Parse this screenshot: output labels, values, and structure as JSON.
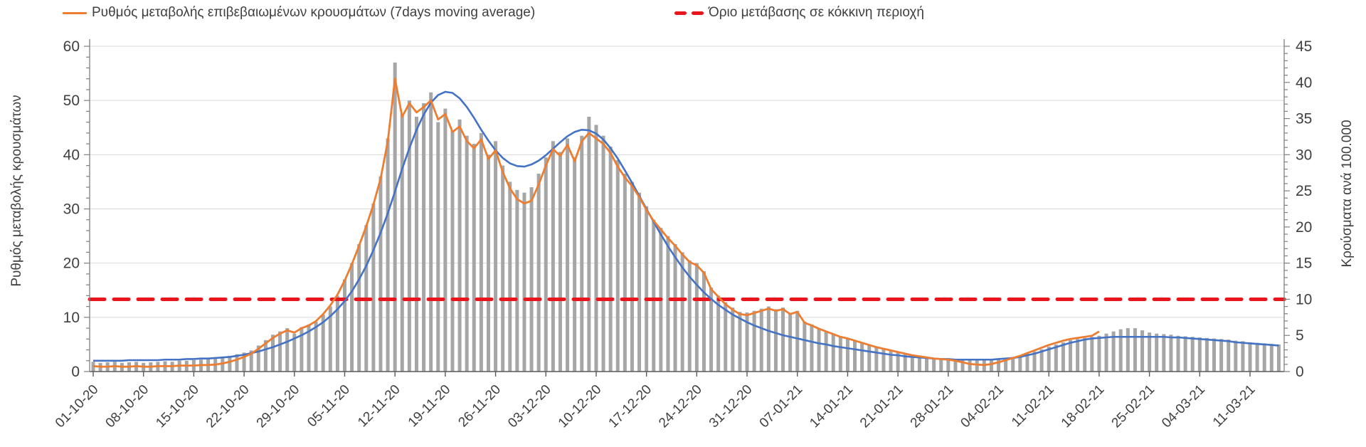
{
  "chart_data": {
    "type": "bar+line combo (daily epidemic curve)",
    "title": "",
    "legend": [
      {
        "label": "Ρυθμός μεταβολής επιβεβαιωμένων κρουσμάτων (7days moving average)",
        "style": "solid-line",
        "color": "#ED7D31"
      },
      {
        "label": "Όριο μετάβασης σε κόκκινη περιοχή",
        "style": "dashed-line",
        "color": "#E8151C"
      }
    ],
    "y_left": {
      "label": "Ρυθμός μεταβολής κρουσμάτων",
      "min": 0,
      "max": 60,
      "tick_step": 10,
      "ticks": [
        0,
        10,
        20,
        30,
        40,
        50,
        60
      ]
    },
    "y_right": {
      "label": "Κρούσματα ανά 100.000",
      "min": 0,
      "max": 45,
      "tick_step": 5,
      "ticks": [
        0,
        5,
        10,
        15,
        20,
        25,
        30,
        35,
        40,
        45
      ]
    },
    "x_tick_labels": [
      "01-10-20",
      "08-10-20",
      "15-10-20",
      "22-10-20",
      "29-10-20",
      "05-11-20",
      "12-11-20",
      "19-11-20",
      "26-11-20",
      "03-12-20",
      "10-12-20",
      "17-12-20",
      "24-12-20",
      "31-12-20",
      "07-01-21",
      "14-01-21",
      "21-01-21",
      "28-01-21",
      "04-02-21",
      "11-02-21",
      "18-02-21",
      "25-02-21",
      "04-03-21",
      "11-03-21"
    ],
    "x_tick_interval_days": 7,
    "grid": "horizontal-light-gray",
    "colors": {
      "bars": "#A6A6A6",
      "ma7": "#ED7D31",
      "trend": "#4472C4",
      "threshold": "#E8151C",
      "gridline": "#D9D9D9",
      "axis": "#595959",
      "text": "#3F3F3F"
    },
    "threshold": {
      "value": 10,
      "axis": "right",
      "left_axis_equivalent": 13.33
    },
    "series": [
      {
        "name": "daily-bars",
        "type": "bar",
        "axis": "left",
        "values": [
          1.8,
          1.6,
          1.7,
          1.8,
          1.6,
          1.7,
          1.8,
          1.6,
          1.7,
          1.8,
          1.9,
          1.8,
          2.0,
          2.0,
          2.1,
          2.2,
          2.3,
          2.5,
          2.7,
          2.9,
          3.2,
          3.5,
          3.9,
          4.8,
          5.8,
          6.8,
          7.4,
          8.0,
          7.0,
          8.2,
          8.7,
          9.2,
          10.5,
          12.0,
          14.0,
          17.0,
          20.0,
          23.5,
          27.0,
          31.0,
          36.0,
          43.0,
          57.0,
          47.5,
          50.0,
          47.0,
          49.5,
          51.5,
          46.0,
          48.5,
          44.5,
          46.5,
          43.5,
          42.0,
          44.0,
          40.0,
          42.5,
          38.0,
          35.0,
          33.5,
          33.0,
          34.0,
          36.5,
          39.5,
          42.5,
          40.5,
          43.0,
          39.5,
          43.5,
          47.0,
          45.5,
          43.5,
          41.5,
          39.0,
          36.5,
          35.0,
          33.0,
          30.5,
          28.0,
          26.5,
          25.0,
          23.5,
          22.0,
          20.5,
          20.0,
          18.5,
          15.5,
          14.0,
          12.8,
          11.8,
          11.0,
          10.9,
          11.2,
          11.6,
          12.0,
          11.5,
          11.8,
          10.8,
          11.2,
          9.2,
          8.7,
          8.0,
          7.5,
          7.0,
          6.5,
          6.1,
          5.7,
          5.3,
          4.9,
          4.5,
          4.2,
          3.9,
          3.6,
          3.3,
          3.0,
          2.8,
          2.6,
          2.5,
          2.4,
          2.4,
          2.3,
          2.3,
          2.3,
          2.3,
          2.2,
          2.3,
          2.4,
          2.5,
          2.7,
          3.0,
          3.3,
          3.7,
          4.1,
          4.6,
          5.0,
          5.4,
          5.8,
          6.0,
          6.2,
          6.4,
          6.6,
          7.0,
          7.4,
          7.8,
          8.0,
          8.0,
          7.6,
          7.2,
          7.0,
          6.9,
          6.8,
          6.6,
          6.5,
          6.4,
          6.3,
          6.2,
          6.1,
          6.0,
          5.9,
          5.7,
          5.6,
          5.4,
          5.3,
          5.2,
          5.1,
          5.0
        ]
      },
      {
        "name": "Ρυθμός μεταβολής επιβεβαιωμένων κρουσμάτων (7days moving average)",
        "type": "line",
        "axis": "left",
        "values": [
          1.0,
          0.9,
          0.9,
          1.0,
          0.9,
          0.9,
          1.0,
          0.9,
          0.9,
          1.0,
          1.0,
          1.0,
          1.1,
          1.1,
          1.1,
          1.2,
          1.2,
          1.3,
          1.5,
          1.8,
          2.2,
          2.7,
          3.3,
          4.2,
          5.2,
          6.2,
          7.0,
          7.6,
          7.2,
          8.0,
          8.5,
          9.3,
          10.6,
          12.2,
          14.2,
          16.8,
          19.8,
          23.2,
          26.8,
          30.8,
          35.6,
          42.5,
          54.0,
          47.0,
          49.5,
          47.8,
          48.8,
          50.0,
          46.5,
          47.5,
          44.2,
          45.2,
          42.5,
          41.2,
          42.8,
          39.2,
          40.8,
          36.8,
          33.8,
          31.8,
          31.0,
          31.5,
          34.5,
          38.0,
          41.0,
          39.8,
          41.8,
          38.8,
          42.5,
          44.0,
          43.0,
          42.0,
          40.3,
          37.8,
          35.8,
          34.2,
          32.2,
          29.8,
          27.8,
          26.2,
          24.6,
          23.2,
          21.6,
          20.2,
          19.6,
          18.2,
          15.2,
          13.8,
          12.4,
          11.4,
          10.6,
          10.4,
          10.8,
          11.2,
          11.6,
          11.2,
          11.5,
          10.6,
          11.0,
          9.0,
          8.5,
          7.9,
          7.4,
          6.9,
          6.4,
          6.1,
          5.7,
          5.3,
          4.9,
          4.5,
          4.2,
          3.9,
          3.6,
          3.3,
          3.0,
          2.8,
          2.6,
          2.4,
          2.3,
          2.2,
          2.0,
          1.7,
          1.4,
          1.3,
          1.2,
          1.4,
          1.7,
          2.1,
          2.5,
          2.9,
          3.4,
          3.9,
          4.4,
          4.9,
          5.3,
          5.7,
          6.0,
          6.2,
          6.4,
          6.6,
          7.4
        ]
      },
      {
        "name": "smoothed-trend",
        "type": "line",
        "axis": "left",
        "values": [
          2.0,
          2.0,
          2.0,
          2.0,
          2.0,
          2.1,
          2.1,
          2.1,
          2.1,
          2.1,
          2.2,
          2.2,
          2.2,
          2.3,
          2.3,
          2.4,
          2.4,
          2.5,
          2.6,
          2.7,
          2.9,
          3.1,
          3.4,
          3.7,
          4.1,
          4.5,
          5.0,
          5.5,
          6.1,
          6.7,
          7.4,
          8.2,
          9.1,
          10.2,
          11.5,
          13.0,
          14.8,
          17.0,
          19.5,
          22.4,
          25.6,
          29.2,
          33.2,
          37.4,
          41.2,
          44.6,
          47.4,
          49.6,
          51.0,
          51.6,
          51.4,
          50.4,
          48.8,
          46.8,
          44.6,
          42.6,
          40.8,
          39.4,
          38.4,
          37.9,
          37.8,
          38.2,
          38.9,
          39.9,
          41.1,
          42.3,
          43.4,
          44.2,
          44.6,
          44.5,
          43.9,
          42.8,
          41.2,
          39.3,
          37.1,
          34.8,
          32.4,
          30.0,
          27.6,
          25.3,
          23.1,
          21.1,
          19.2,
          17.5,
          16.0,
          14.6,
          13.4,
          12.3,
          11.4,
          10.5,
          9.8,
          9.1,
          8.5,
          8.0,
          7.5,
          7.1,
          6.7,
          6.4,
          6.1,
          5.8,
          5.5,
          5.2,
          5.0,
          4.7,
          4.5,
          4.3,
          4.1,
          3.9,
          3.7,
          3.5,
          3.3,
          3.1,
          3.0,
          2.8,
          2.7,
          2.6,
          2.5,
          2.4,
          2.3,
          2.3,
          2.2,
          2.2,
          2.2,
          2.2,
          2.2,
          2.2,
          2.3,
          2.4,
          2.5,
          2.7,
          3.0,
          3.3,
          3.7,
          4.1,
          4.5,
          4.9,
          5.3,
          5.6,
          5.9,
          6.1,
          6.2,
          6.3,
          6.4,
          6.4,
          6.4,
          6.4,
          6.4,
          6.4,
          6.4,
          6.4,
          6.3,
          6.3,
          6.2,
          6.1,
          6.0,
          5.9,
          5.8,
          5.7,
          5.6,
          5.4,
          5.3,
          5.2,
          5.1,
          5.0,
          4.9,
          4.8
        ]
      }
    ]
  }
}
